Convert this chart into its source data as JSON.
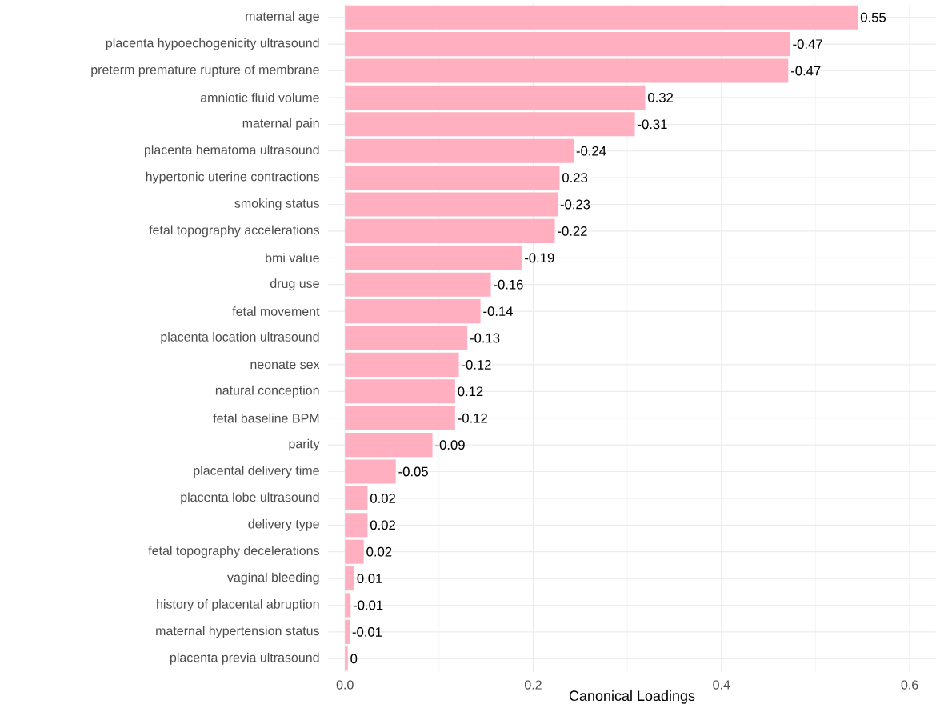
{
  "chart_data": {
    "type": "bar",
    "orientation": "horizontal",
    "xlabel": "Canonical Loadings",
    "categories": [
      "maternal age",
      "placenta hypoechogenicity ultrasound",
      "preterm premature rupture of membrane",
      "amniotic fluid volume",
      "maternal pain",
      "placenta hematoma ultrasound",
      "hypertonic uterine contractions",
      "smoking status",
      "fetal topography accelerations",
      "bmi value",
      "drug use",
      "fetal movement",
      "placenta location ultrasound",
      "neonate sex",
      "natural conception",
      "fetal baseline BPM",
      "parity",
      "placental delivery time",
      "placenta lobe ultrasound",
      "delivery type",
      "fetal topography decelerations",
      "vaginal bleeding",
      "history of placental abruption",
      "maternal hypertension status",
      "placenta previa ultrasound"
    ],
    "values": [
      0.545,
      0.473,
      0.471,
      0.319,
      0.308,
      0.243,
      0.228,
      0.226,
      0.223,
      0.188,
      0.155,
      0.144,
      0.13,
      0.121,
      0.117,
      0.117,
      0.093,
      0.054,
      0.024,
      0.024,
      0.02,
      0.01,
      0.006,
      0.005,
      0.003
    ],
    "annotations": [
      {
        "text": "0.55",
        "x": 0.545,
        "y": "maternal age"
      },
      {
        "text": "-0.47",
        "x": 0.473,
        "y": "placenta hypoechogenicity ultrasound"
      },
      {
        "text": "-0.47",
        "x": 0.471,
        "y": "preterm premature rupture of membrane"
      },
      {
        "text": "0.32",
        "x": 0.319,
        "y": "amniotic fluid volume"
      },
      {
        "text": "-0.31",
        "x": 0.308,
        "y": "maternal pain"
      },
      {
        "text": "-0.24",
        "x": 0.243,
        "y": "placenta hematoma ultrasound"
      },
      {
        "text": "0.23",
        "x": 0.228,
        "y": "hypertonic uterine contractions"
      },
      {
        "text": "-0.23",
        "x": 0.226,
        "y": "smoking status"
      },
      {
        "text": "-0.22",
        "x": 0.223,
        "y": "fetal topography accelerations"
      },
      {
        "text": "-0.19",
        "x": 0.188,
        "y": "bmi value"
      },
      {
        "text": "-0.16",
        "x": 0.155,
        "y": "drug use"
      },
      {
        "text": "-0.14",
        "x": 0.144,
        "y": "fetal movement"
      },
      {
        "text": "-0.13",
        "x": 0.13,
        "y": "placenta location ultrasound"
      },
      {
        "text": "-0.12",
        "x": 0.121,
        "y": "neonate sex"
      },
      {
        "text": "0.12",
        "x": 0.117,
        "y": "natural conception"
      },
      {
        "text": "-0.12",
        "x": 0.117,
        "y": "fetal baseline BPM"
      },
      {
        "text": "-0.09",
        "x": 0.093,
        "y": "parity"
      },
      {
        "text": "-0.05",
        "x": 0.054,
        "y": "placental delivery time"
      },
      {
        "text": "0.02",
        "x": 0.024,
        "y": "placenta lobe ultrasound"
      },
      {
        "text": "0.02",
        "x": 0.024,
        "y": "delivery type"
      },
      {
        "text": "0.02",
        "x": 0.02,
        "y": "fetal topography decelerations"
      },
      {
        "text": "0.01",
        "x": 0.01,
        "y": "vaginal bleeding"
      },
      {
        "text": "-0.01",
        "x": 0.006,
        "y": "history of placental abruption"
      },
      {
        "text": "-0.01",
        "x": 0.005,
        "y": "maternal hypertension status"
      },
      {
        "text": "0",
        "x": 0.003,
        "y": "placenta previa ultrasound"
      }
    ],
    "color": "#ffafc0",
    "xlim": [
      -0.018,
      0.628
    ],
    "xticks": [
      {
        "value": 0,
        "label": "0.0"
      },
      {
        "value": 0.2,
        "label": "0.2"
      },
      {
        "value": 0.4,
        "label": "0.4"
      },
      {
        "value": 0.6,
        "label": "0.6"
      }
    ],
    "grid": true
  }
}
